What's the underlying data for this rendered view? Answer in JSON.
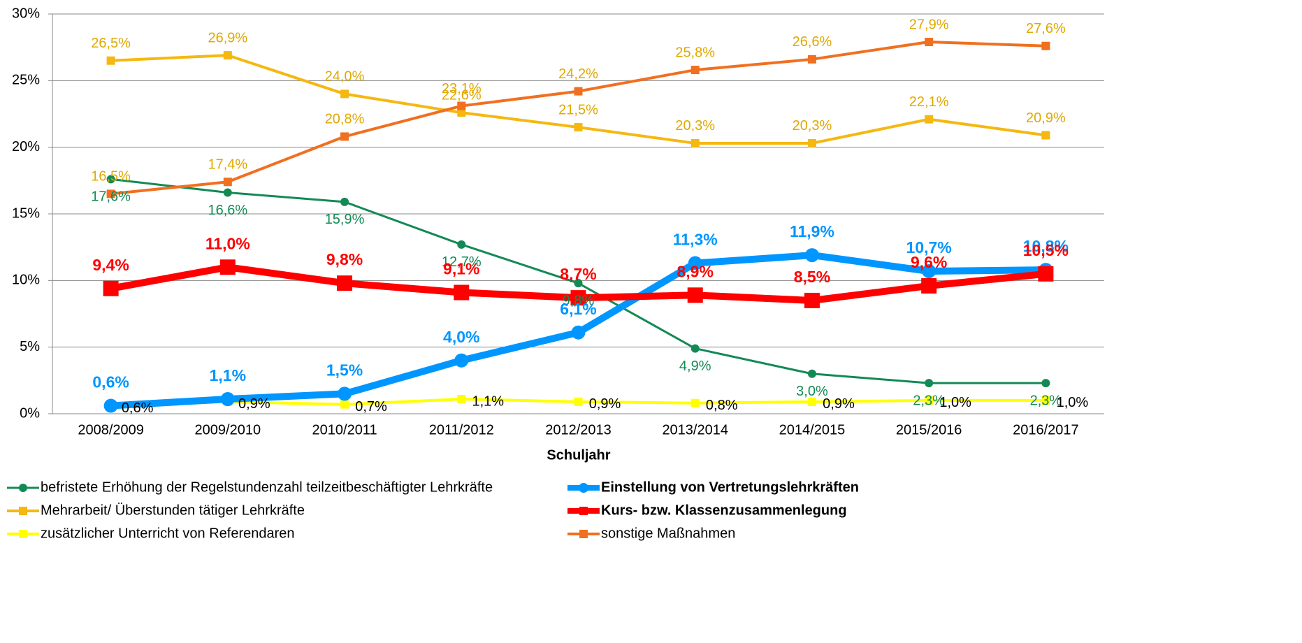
{
  "chart_data": {
    "type": "line",
    "x_label": "Schuljahr",
    "categories": [
      "2008/2009",
      "2009/2010",
      "2010/2011",
      "2011/2012",
      "2012/2013",
      "2013/2014",
      "2014/2015",
      "2015/2016",
      "2016/2017"
    ],
    "ylim": [
      0,
      30
    ],
    "yticks": [
      {
        "value": 0,
        "label": "0%"
      },
      {
        "value": 5,
        "label": "5%"
      },
      {
        "value": 10,
        "label": "10%"
      },
      {
        "value": 15,
        "label": "15%"
      },
      {
        "value": 20,
        "label": "20%"
      },
      {
        "value": 25,
        "label": "25%"
      },
      {
        "value": 30,
        "label": "30%"
      }
    ],
    "grid": true,
    "series": [
      {
        "name": "befristete Erhöhung der Regelstundenzahl teilzeitbeschäftigter Lehrkräfte",
        "color": "#138a55",
        "values": [
          17.6,
          16.6,
          15.9,
          12.7,
          9.8,
          4.9,
          3.0,
          2.3,
          2.3
        ],
        "value_labels": [
          "17,6%",
          "16,6%",
          "15,9%",
          "12,7%",
          "9,8%",
          "4,9%",
          "3,0%",
          "2,3%",
          "2,3%"
        ]
      },
      {
        "name": "Mehrarbeit/ Überstunden tätiger Lehrkräfte",
        "color": "#f5b810",
        "values": [
          26.5,
          26.9,
          24.0,
          22.6,
          21.5,
          20.3,
          20.3,
          22.1,
          20.9
        ],
        "value_labels": [
          "26,5%",
          "26,9%",
          "24,0%",
          "22,6%",
          "21,5%",
          "20,3%",
          "20,3%",
          "22,1%",
          "20,9%"
        ]
      },
      {
        "name": "zusätzlicher Unterricht von Referendaren",
        "color": "#ffff00",
        "values": [
          0.6,
          0.9,
          0.7,
          1.1,
          0.9,
          0.8,
          0.9,
          1.0,
          1.0
        ],
        "value_labels": [
          "0,6%",
          "0,9%",
          "0,7%",
          "1,1%",
          "0,9%",
          "0,8%",
          "0,9%",
          "1,0%",
          "1,0%"
        ]
      },
      {
        "name": "Einstellung von Vertretungslehrkräften",
        "color": "#0096ff",
        "values": [
          0.6,
          1.1,
          1.5,
          4.0,
          6.1,
          11.3,
          11.9,
          10.7,
          10.8
        ],
        "value_labels": [
          "0,6%",
          "1,1%",
          "1,5%",
          "4,0%",
          "6,1%",
          "11,3%",
          "11,9%",
          "10,7%",
          "10,8%"
        ]
      },
      {
        "name": "Kurs- bzw. Klassenzusammenlegung",
        "color": "#ff0000",
        "values": [
          9.4,
          11.0,
          9.8,
          9.1,
          8.7,
          8.9,
          8.5,
          9.6,
          10.5
        ],
        "value_labels": [
          "9,4%",
          "11,0%",
          "9,8%",
          "9,1%",
          "8,7%",
          "8,9%",
          "8,5%",
          "9,6%",
          "10,5%"
        ]
      },
      {
        "name": "sonstige Maßnahmen",
        "color": "#f07020",
        "values": [
          16.5,
          17.4,
          20.8,
          23.1,
          24.2,
          25.8,
          26.6,
          27.9,
          27.6
        ],
        "value_labels": [
          "16,5%",
          "17,4%",
          "20,8%",
          "23,1%",
          "24,2%",
          "25,8%",
          "26,6%",
          "27,9%",
          "27,6%"
        ]
      }
    ]
  }
}
